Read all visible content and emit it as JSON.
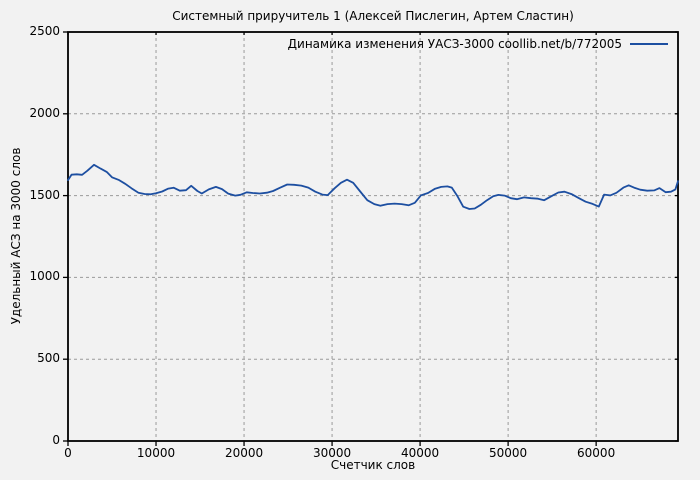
{
  "window": {
    "background": "#f2f2f2"
  },
  "chart_data": {
    "type": "line",
    "title": "Системный приручитель 1 (Алексей Пислегин, Артем Сластин)",
    "xlabel": "Счетчик слов",
    "ylabel": "Удельный АСЗ на 3000 слов",
    "xlim": [
      0,
      69300
    ],
    "ylim": [
      0,
      2500
    ],
    "xticks": [
      0,
      10000,
      20000,
      30000,
      40000,
      50000,
      60000
    ],
    "yticks": [
      0,
      500,
      1000,
      1500,
      2000,
      2500
    ],
    "grid": true,
    "grid_style": "dashed",
    "grid_color": "#9a9a9a",
    "frame_color": "#000000",
    "legend_position": "top-right-inside",
    "series": [
      {
        "name": "Динамика изменения УАСЗ-3000 coollib.net/b/772005",
        "color": "#1d4fa1",
        "points": [
          [
            0,
            1595
          ],
          [
            400,
            1628
          ],
          [
            1000,
            1630
          ],
          [
            1600,
            1627
          ],
          [
            2200,
            1652
          ],
          [
            2950,
            1688
          ],
          [
            3700,
            1665
          ],
          [
            4400,
            1645
          ],
          [
            5000,
            1612
          ],
          [
            5800,
            1595
          ],
          [
            6500,
            1572
          ],
          [
            7200,
            1545
          ],
          [
            8000,
            1518
          ],
          [
            8700,
            1510
          ],
          [
            9400,
            1508
          ],
          [
            10000,
            1514
          ],
          [
            10700,
            1525
          ],
          [
            11400,
            1543
          ],
          [
            12000,
            1548
          ],
          [
            12700,
            1530
          ],
          [
            13400,
            1533
          ],
          [
            14000,
            1560
          ],
          [
            14700,
            1528
          ],
          [
            15200,
            1513
          ],
          [
            16000,
            1538
          ],
          [
            16800,
            1553
          ],
          [
            17500,
            1540
          ],
          [
            18200,
            1512
          ],
          [
            19000,
            1500
          ],
          [
            19600,
            1505
          ],
          [
            20300,
            1520
          ],
          [
            21000,
            1516
          ],
          [
            21800,
            1513
          ],
          [
            22600,
            1518
          ],
          [
            23300,
            1528
          ],
          [
            24100,
            1548
          ],
          [
            24900,
            1568
          ],
          [
            25700,
            1566
          ],
          [
            26500,
            1561
          ],
          [
            27300,
            1549
          ],
          [
            28100,
            1524
          ],
          [
            28900,
            1506
          ],
          [
            29500,
            1503
          ],
          [
            30300,
            1545
          ],
          [
            31000,
            1578
          ],
          [
            31700,
            1597
          ],
          [
            32400,
            1578
          ],
          [
            33200,
            1525
          ],
          [
            34000,
            1472
          ],
          [
            34800,
            1448
          ],
          [
            35500,
            1438
          ],
          [
            36300,
            1448
          ],
          [
            37100,
            1451
          ],
          [
            37900,
            1448
          ],
          [
            38700,
            1441
          ],
          [
            39400,
            1456
          ],
          [
            40100,
            1502
          ],
          [
            40900,
            1516
          ],
          [
            41700,
            1542
          ],
          [
            42400,
            1553
          ],
          [
            43100,
            1556
          ],
          [
            43600,
            1549
          ],
          [
            44200,
            1500
          ],
          [
            44900,
            1432
          ],
          [
            45600,
            1418
          ],
          [
            46200,
            1421
          ],
          [
            46900,
            1444
          ],
          [
            47600,
            1472
          ],
          [
            48300,
            1496
          ],
          [
            48900,
            1504
          ],
          [
            49600,
            1500
          ],
          [
            50300,
            1484
          ],
          [
            51000,
            1478
          ],
          [
            51800,
            1489
          ],
          [
            52600,
            1484
          ],
          [
            53400,
            1481
          ],
          [
            54100,
            1472
          ],
          [
            54900,
            1496
          ],
          [
            55700,
            1519
          ],
          [
            56400,
            1524
          ],
          [
            57200,
            1509
          ],
          [
            58000,
            1486
          ],
          [
            58800,
            1463
          ],
          [
            59600,
            1449
          ],
          [
            60300,
            1433
          ],
          [
            60900,
            1506
          ],
          [
            61600,
            1501
          ],
          [
            62300,
            1517
          ],
          [
            63100,
            1549
          ],
          [
            63700,
            1563
          ],
          [
            64300,
            1549
          ],
          [
            65000,
            1536
          ],
          [
            65800,
            1530
          ],
          [
            66600,
            1532
          ],
          [
            67200,
            1546
          ],
          [
            67900,
            1521
          ],
          [
            68500,
            1524
          ],
          [
            69000,
            1538
          ],
          [
            69300,
            1588
          ]
        ]
      }
    ]
  }
}
